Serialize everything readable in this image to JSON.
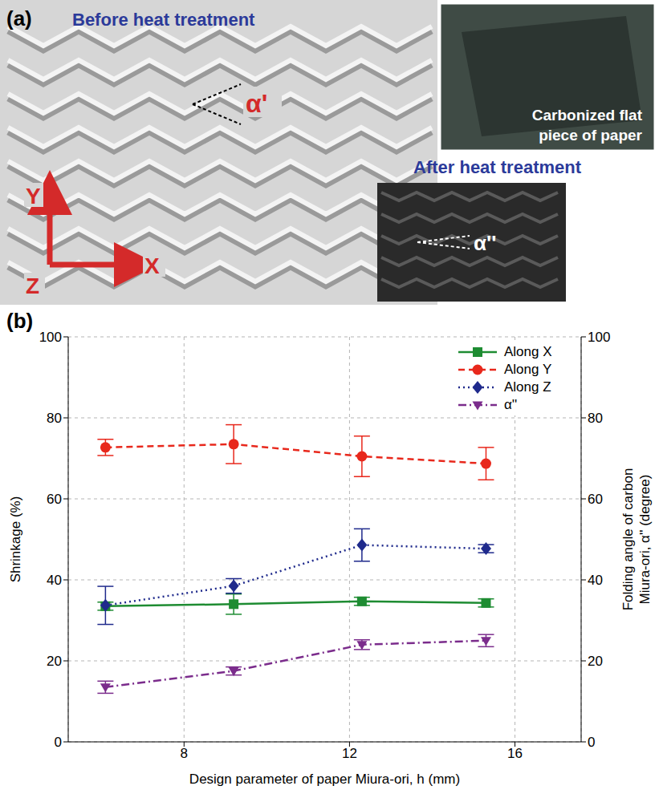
{
  "panel_a": {
    "label": "(a)",
    "before": "Before heat treatment",
    "after": "After heat treatment",
    "inset": "Carbonized flat piece of paper",
    "angle_before": "α'",
    "angle_after": "α''",
    "axes": [
      "X",
      "Y",
      "Z"
    ]
  },
  "chart_data": {
    "type": "line",
    "panel_label": "(b)",
    "x_label": "Design parameter of paper Miura-ori, h (mm)",
    "y_label": "Shrinkage (%)",
    "y2_label": "Folding angle of carbon Miura-ori, α'' (degree)",
    "x": [
      6.1,
      9.2,
      12.3,
      15.3
    ],
    "xlim": [
      5.2,
      17.6
    ],
    "xticks": [
      8,
      12,
      16
    ],
    "ylim": [
      0,
      100
    ],
    "yticks": [
      0,
      20,
      40,
      60,
      80,
      100
    ],
    "y2lim": [
      0,
      100
    ],
    "y2ticks": [
      0,
      20,
      40,
      60,
      80,
      100
    ],
    "grid": true,
    "legend": "upper right",
    "series": [
      {
        "name": "Along X",
        "color": "#1e8c32",
        "marker": "square",
        "line_style": "solid",
        "values": [
          33.5,
          34,
          34.7,
          34.3
        ],
        "errors": [
          1,
          2.5,
          1,
          1
        ]
      },
      {
        "name": "Along Y",
        "color": "#e8281c",
        "marker": "circle",
        "line_style": "dashed",
        "values": [
          72.7,
          73.5,
          70.5,
          68.7
        ],
        "errors": [
          2,
          4.8,
          5,
          4
        ]
      },
      {
        "name": "Along Z",
        "color": "#1f2a8c",
        "marker": "diamond",
        "line_style": "dotted",
        "values": [
          33.7,
          38.5,
          48.6,
          47.7
        ],
        "errors": [
          4.7,
          1.8,
          4,
          1
        ]
      },
      {
        "name": "α''",
        "color": "#7b2c8c",
        "marker": "triangle_down",
        "line_style": "dashdot",
        "axis": "y2",
        "values": [
          13.5,
          17.5,
          24,
          25
        ],
        "errors": [
          1.5,
          1,
          1.2,
          1.5
        ]
      }
    ]
  }
}
